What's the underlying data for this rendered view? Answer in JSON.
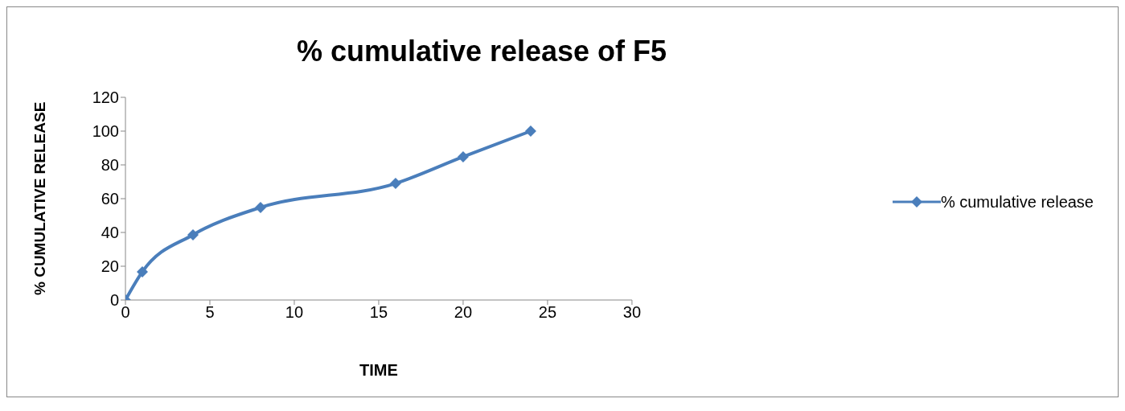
{
  "chart_data": {
    "type": "line",
    "title": "% cumulative release of F5",
    "xlabel": "TIME",
    "ylabel": "% CUMULATIVE RELEASE",
    "x": [
      0,
      1,
      4,
      8,
      16,
      20,
      24
    ],
    "series": [
      {
        "name": "% cumulative release",
        "color": "#4a7ebb",
        "values": [
          0,
          16.7,
          38.6,
          54.8,
          69,
          84.8,
          100
        ]
      }
    ],
    "xlim": [
      0,
      30
    ],
    "xticks": [
      0,
      5,
      10,
      15,
      20,
      25,
      30
    ],
    "ylim": [
      0,
      120
    ],
    "yticks": [
      0,
      20,
      40,
      60,
      80,
      100,
      120
    ],
    "grid": false,
    "legend": "right",
    "marker": "diamond",
    "line_style": "solid"
  }
}
